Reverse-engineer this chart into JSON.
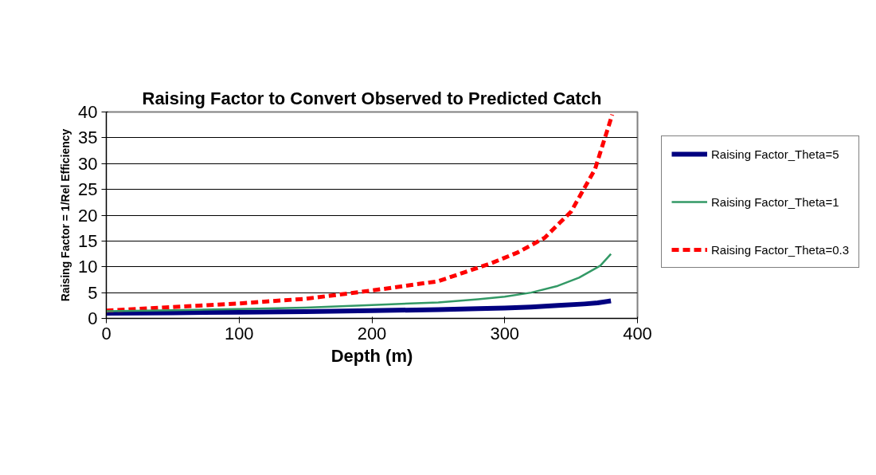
{
  "chart_data": {
    "type": "line",
    "title": "Raising Factor to Convert Observed to Predicted Catch",
    "xlabel": "Depth (m)",
    "ylabel": "Raising Factor = 1/Rel Efficiency",
    "xlim": [
      0,
      400
    ],
    "xticks": [
      0,
      100,
      200,
      300,
      400
    ],
    "ylim": [
      0,
      40
    ],
    "yticks": [
      0,
      5,
      10,
      15,
      20,
      25,
      30,
      35,
      40
    ],
    "grid": "y",
    "legend": "right",
    "series": [
      {
        "name": "Raising Factor_Theta=5",
        "color": "#000080",
        "line_style": "solid",
        "x": [
          0,
          50,
          100,
          150,
          200,
          250,
          280,
          300,
          320,
          340,
          360,
          370,
          380
        ],
        "values": [
          1.0,
          1.1,
          1.2,
          1.3,
          1.5,
          1.7,
          1.9,
          2.0,
          2.2,
          2.5,
          2.8,
          3.0,
          3.4
        ]
      },
      {
        "name": "Raising Factor_Theta=1",
        "color": "#339966",
        "line_style": "solid",
        "x": [
          0,
          50,
          100,
          150,
          200,
          250,
          280,
          300,
          320,
          340,
          356,
          372,
          380
        ],
        "values": [
          1.4,
          1.6,
          1.8,
          2.1,
          2.6,
          3.1,
          3.7,
          4.2,
          5.0,
          6.3,
          7.9,
          10.2,
          12.5
        ]
      },
      {
        "name": "Raising Factor_Theta=0.3",
        "color": "#ff0000",
        "line_style": "dashed",
        "x": [
          0,
          50,
          100,
          150,
          200,
          250,
          290,
          310,
          330,
          350,
          368,
          381
        ],
        "values": [
          1.5,
          2.2,
          2.9,
          3.8,
          5.4,
          7.2,
          10.7,
          12.8,
          15.6,
          20.7,
          28.9,
          39.5
        ]
      }
    ]
  }
}
